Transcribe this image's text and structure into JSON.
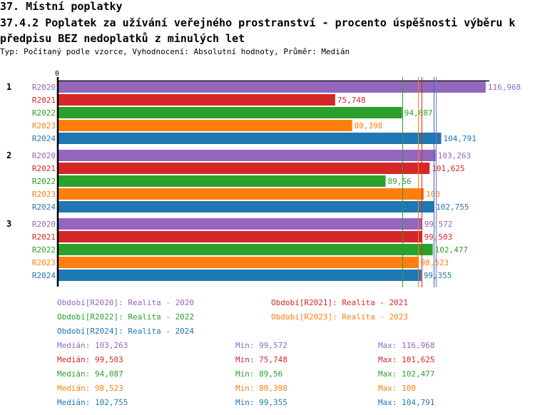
{
  "header": {
    "section_title": "37. Místní poplatky",
    "chart_title": "37.4.2 Poplatek za užívání veřejného prostranství - procento úspěšnosti výběru k předpisu BEZ nedoplatků z minulých let",
    "subtitle": "Typ: Počítaný podle vzorce, Vyhodnocení: Absolutní hodnoty, Průměr: Medián"
  },
  "chart_data": {
    "type": "bar",
    "orientation": "horizontal",
    "x_tick_label": "0",
    "xlim": [
      0,
      116.968
    ],
    "categories": [
      "1",
      "2",
      "3"
    ],
    "series": [
      {
        "name": "R2020",
        "legend": "Období[R2020]: Realita - 2020",
        "color": "#9467bd",
        "values": [
          116.968,
          103.263,
          99.572
        ],
        "labels": [
          "116,968",
          "103,263",
          "99,572"
        ],
        "median": 103.263,
        "median_label": "Medián: 103,263",
        "min_label": "Min: 99,572",
        "max_label": "Max: 116,968"
      },
      {
        "name": "R2021",
        "legend": "Období[R2021]: Realita - 2021",
        "color": "#d62728",
        "values": [
          75.748,
          101.625,
          99.503
        ],
        "labels": [
          "75,748",
          "101,625",
          "99,503"
        ],
        "median": 99.503,
        "median_label": "Medián: 99,503",
        "min_label": "Min: 75,748",
        "max_label": "Max: 101,625"
      },
      {
        "name": "R2022",
        "legend": "Období[R2022]: Realita - 2022",
        "color": "#2ca02c",
        "values": [
          94.087,
          89.56,
          102.477
        ],
        "labels": [
          "94,087",
          "89,56",
          "102,477"
        ],
        "median": 94.087,
        "median_label": "Medián: 94,087",
        "min_label": "Min: 89,56",
        "max_label": "Max: 102,477"
      },
      {
        "name": "R2023",
        "legend": "Období[R2023]: Realita - 2023",
        "color": "#ff7f0e",
        "values": [
          80.398,
          100,
          98.523
        ],
        "labels": [
          "80,398",
          "100",
          "98,523"
        ],
        "median": 98.523,
        "median_label": "Medián: 98,523",
        "min_label": "Min: 80,398",
        "max_label": "Max: 100"
      },
      {
        "name": "R2024",
        "legend": "Období[R2024]: Realita - 2024",
        "color": "#1f77b4",
        "values": [
          104.791,
          102.755,
          99.355
        ],
        "labels": [
          "104,791",
          "102,755",
          "99,355"
        ],
        "median": 102.755,
        "median_label": "Medián: 102,755",
        "min_label": "Min: 99,355",
        "max_label": "Max: 104,791"
      }
    ]
  }
}
